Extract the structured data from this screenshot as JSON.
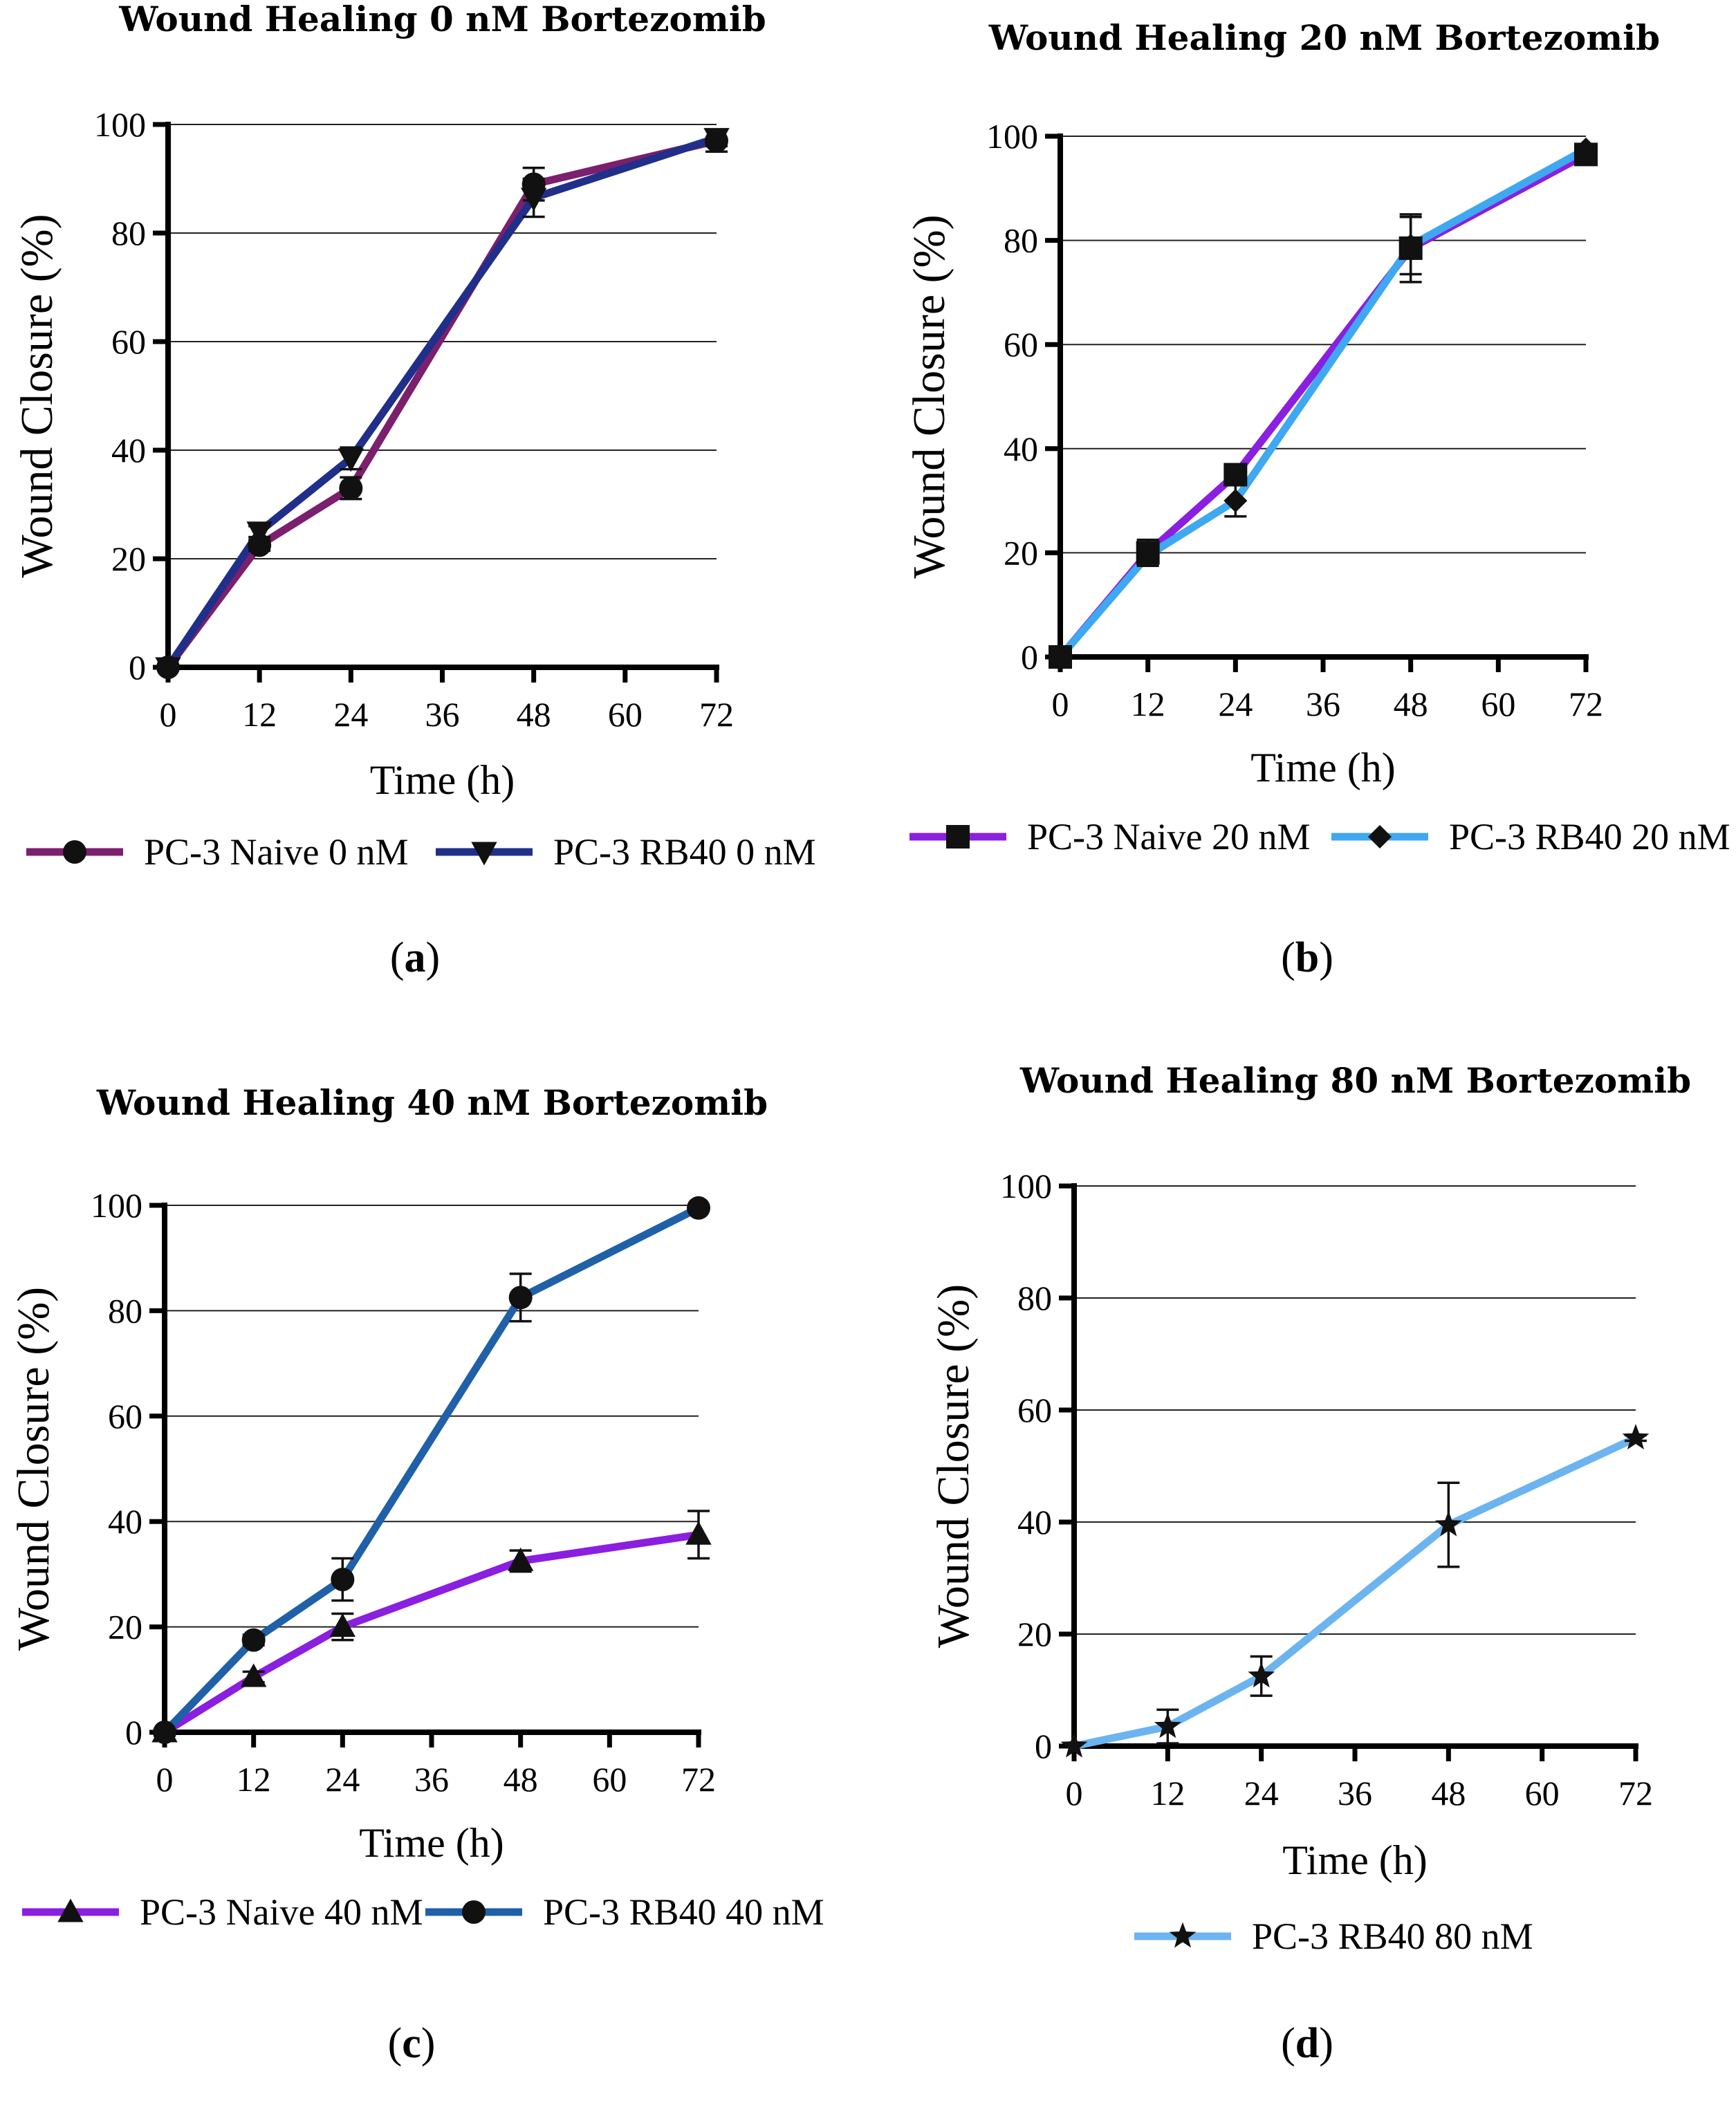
{
  "chart_data": [
    {
      "type": "line",
      "title": "Wound Healing 0 nM Bortezomib",
      "xlabel": "Time (h)",
      "ylabel": "Wound Closure (%)",
      "panel_label": "a",
      "xlim": [
        0,
        72
      ],
      "ylim": [
        0,
        100
      ],
      "xticks": [
        "0",
        "12",
        "24",
        "36",
        "48",
        "60",
        "72"
      ],
      "yticks": [
        "0",
        "20",
        "40",
        "60",
        "80",
        "100"
      ],
      "grid": "horizontal",
      "legend": "bottom",
      "series": [
        {
          "name": "PC-3 Naive 0 nM",
          "color": "#7b1f6e",
          "marker": "circle",
          "x": [
            0,
            12,
            24,
            48,
            72
          ],
          "y": [
            0,
            22.5,
            33,
            89,
            97
          ],
          "err": [
            0,
            1,
            2,
            3,
            2
          ]
        },
        {
          "name": "PC-3 RB40 0 nM",
          "color": "#1f2f8a",
          "marker": "triangle-down",
          "x": [
            0,
            12,
            24,
            48,
            72
          ],
          "y": [
            0,
            25,
            38.5,
            86.5,
            97.5
          ],
          "err": [
            0,
            1,
            2,
            3.5,
            1.5
          ]
        }
      ]
    },
    {
      "type": "line",
      "title": "Wound Healing 20 nM Bortezomib",
      "xlabel": "Time (h)",
      "ylabel": "Wound Closure (%)",
      "panel_label": "b",
      "xlim": [
        0,
        72
      ],
      "ylim": [
        0,
        100
      ],
      "xticks": [
        "0",
        "12",
        "24",
        "36",
        "48",
        "60",
        "72"
      ],
      "yticks": [
        "0",
        "20",
        "40",
        "60",
        "80",
        "100"
      ],
      "grid": "horizontal",
      "legend": "bottom",
      "series": [
        {
          "name": "PC-3 Naive 20 nM",
          "color": "#8a1fe0",
          "marker": "square",
          "x": [
            0,
            12,
            24,
            48,
            72
          ],
          "y": [
            0,
            20,
            35,
            78.5,
            96.5
          ],
          "err": [
            0,
            2.5,
            1.5,
            6.5,
            1
          ]
        },
        {
          "name": "PC-3 RB40 20 nM",
          "color": "#3fa8f0",
          "marker": "diamond",
          "x": [
            0,
            12,
            24,
            48,
            72
          ],
          "y": [
            0,
            19.5,
            30,
            79,
            97.5
          ],
          "err": [
            0,
            1.5,
            3,
            5.5,
            1
          ]
        }
      ]
    },
    {
      "type": "line",
      "title": "Wound Healing 40 nM Bortezomib",
      "xlabel": "Time (h)",
      "ylabel": "Wound Closure (%)",
      "panel_label": "c",
      "xlim": [
        0,
        72
      ],
      "ylim": [
        0,
        100
      ],
      "xticks": [
        "0",
        "12",
        "24",
        "36",
        "48",
        "60",
        "72"
      ],
      "yticks": [
        "0",
        "20",
        "40",
        "60",
        "80",
        "100"
      ],
      "grid": "horizontal",
      "legend": "bottom",
      "series": [
        {
          "name": "PC-3 Naive 40 nM",
          "color": "#8a1fe0",
          "marker": "triangle",
          "x": [
            0,
            12,
            24,
            48,
            72
          ],
          "y": [
            0,
            10.5,
            20,
            32.5,
            37.5
          ],
          "err": [
            0,
            1,
            2.5,
            2,
            4.5
          ]
        },
        {
          "name": "PC-3 RB40 40 nM",
          "color": "#1f60a8",
          "marker": "circle",
          "x": [
            0,
            12,
            24,
            48,
            72
          ],
          "y": [
            0,
            17.5,
            29,
            82.5,
            99.5
          ],
          "err": [
            0,
            1,
            4,
            4.5,
            0.5
          ]
        }
      ]
    },
    {
      "type": "line",
      "title": "Wound Healing 80 nM Bortezomib",
      "xlabel": "Time (h)",
      "ylabel": "Wound Closure (%)",
      "panel_label": "d",
      "xlim": [
        0,
        72
      ],
      "ylim": [
        0,
        100
      ],
      "xticks": [
        "0",
        "12",
        "24",
        "36",
        "48",
        "60",
        "72"
      ],
      "yticks": [
        "0",
        "20",
        "40",
        "60",
        "80",
        "100"
      ],
      "grid": "horizontal",
      "legend": "bottom",
      "series": [
        {
          "name": "PC-3 RB40 80 nM",
          "color": "#6cb4f0",
          "marker": "star",
          "x": [
            0,
            12,
            24,
            48,
            72
          ],
          "y": [
            0,
            3.5,
            12.5,
            39.5,
            55
          ],
          "err": [
            0,
            3,
            3.5,
            7.5,
            0.5
          ]
        }
      ]
    }
  ]
}
